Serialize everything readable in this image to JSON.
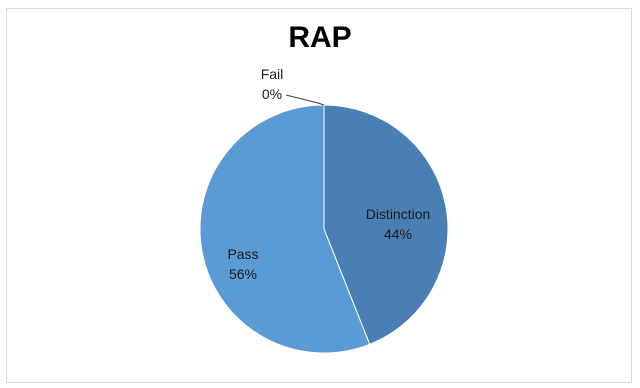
{
  "chart_data": {
    "type": "pie",
    "title": "RAP",
    "slices": [
      {
        "label": "Distinction",
        "value": 44,
        "value_label": "44%",
        "color": "#4a7fb5"
      },
      {
        "label": "Pass",
        "value": 56,
        "value_label": "56%",
        "color": "#5b9bd5"
      },
      {
        "label": "Fail",
        "value": 0,
        "value_label": "0%",
        "color": "#4a7fb5"
      }
    ],
    "start_angle": "12 o'clock",
    "direction": "clockwise",
    "legend": "none",
    "data_labels": "category name and percentage"
  }
}
